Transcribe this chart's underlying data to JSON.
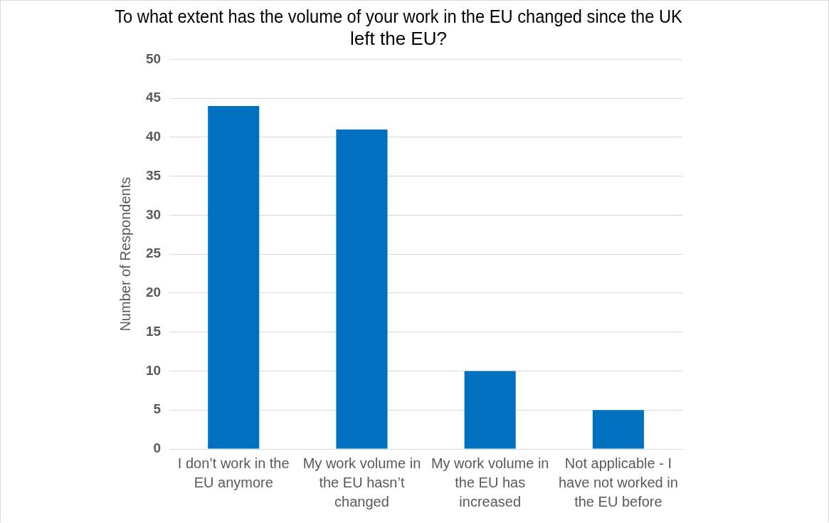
{
  "chart_data": {
    "type": "bar",
    "title": "To what extent has the volume of your work in the EU changed since the UK left the EU?",
    "ylabel": "Number of Respondents",
    "categories": [
      "I don’t work in the EU anymore",
      "My work volume in the EU hasn’t changed",
      "My work volume in the EU has increased",
      "Not applicable - I have not worked in the EU before"
    ],
    "values": [
      44,
      41,
      10,
      5
    ],
    "color": "#0070c0",
    "ylim": [
      0,
      50
    ],
    "yticks": [
      0,
      5,
      10,
      15,
      20,
      25,
      30,
      35,
      40,
      45,
      50
    ],
    "grid": "y",
    "legend": false
  }
}
